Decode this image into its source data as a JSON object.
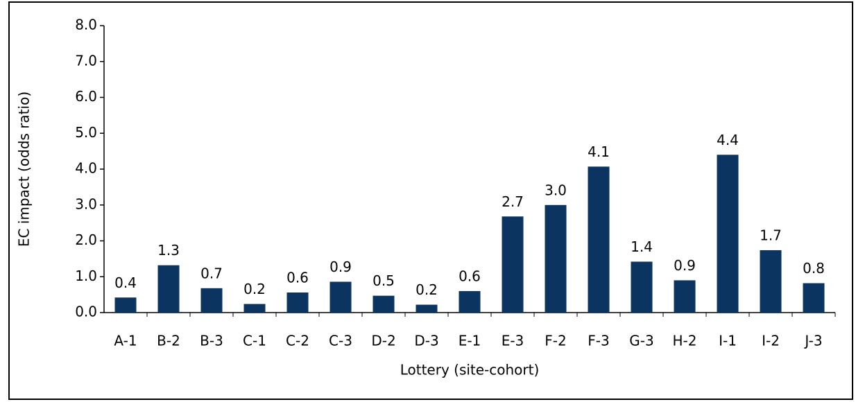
{
  "chart_data": {
    "type": "bar",
    "xlabel": "Lottery (site-cohort)",
    "ylabel": "EC impact (odds ratio)",
    "categories": [
      "A-1",
      "B-2",
      "B-3",
      "C-1",
      "C-2",
      "C-3",
      "D-2",
      "D-3",
      "E-1",
      "E-3",
      "F-2",
      "F-3",
      "G-3",
      "H-2",
      "I-1",
      "I-2",
      "J-3"
    ],
    "values": [
      0.42,
      1.32,
      0.68,
      0.24,
      0.56,
      0.86,
      0.47,
      0.22,
      0.6,
      2.68,
      3.0,
      4.07,
      1.42,
      0.9,
      4.4,
      1.74,
      0.82
    ],
    "value_labels": [
      "0.4",
      "1.3",
      "0.7",
      "0.2",
      "0.6",
      "0.9",
      "0.5",
      "0.2",
      "0.6",
      "2.7",
      "3.0",
      "4.1",
      "1.4",
      "0.9",
      "4.4",
      "1.7",
      "0.8"
    ],
    "color": "#0b3460",
    "ylim": [
      0,
      8
    ],
    "yticks": [
      {
        "value": 0,
        "label": "0.0"
      },
      {
        "value": 1,
        "label": "1.0"
      },
      {
        "value": 2,
        "label": "2.0"
      },
      {
        "value": 3,
        "label": "3.0"
      },
      {
        "value": 4,
        "label": "4.0"
      },
      {
        "value": 5,
        "label": "5.0"
      },
      {
        "value": 6,
        "label": "6.0"
      },
      {
        "value": 7,
        "label": "7.0"
      },
      {
        "value": 8,
        "label": "8.0"
      }
    ],
    "grid": false
  }
}
